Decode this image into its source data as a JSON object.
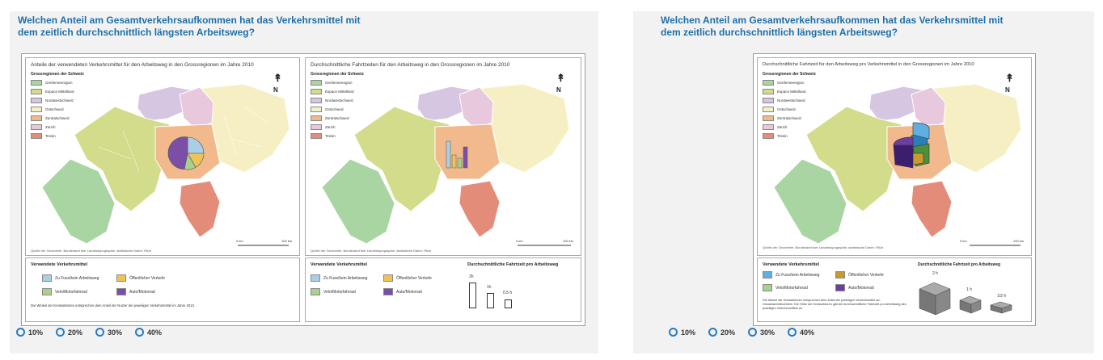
{
  "colors": {
    "Genferseeregion": "#a8d5a2",
    "Espace Mittelland": "#d2dc8a",
    "Nordwestschweiz": "#d6c6e2",
    "Ostschweiz": "#f7efc4",
    "Zentralschweiz": "#f1b98c",
    "Zürich": "#e8c8dc",
    "Tessin": "#e48c7a",
    "foot": "#a9cfe6",
    "oev": "#f0c35a",
    "velo": "#a8d08f",
    "auto": "#7b4fa8",
    "accent": "#1d6fa8"
  },
  "question": "Welchen Anteil am Gesamtverkehrsaufkommen hat das Verkehrsmittel mit dem zeitlich durchschnittlich längsten Arbeitsweg?",
  "left": {
    "map1_title": "Anteile der verwendeten Verkehrsmittel für den Arbeitsweg in den Grossregionen im Jahre 2010",
    "map2_title": "Durchschnittliche Fahrtzeiten für den Arbeitsweg in den Grossregionen im Jahre 2010",
    "legend_title": "Grossregionen der Schweiz",
    "regions": [
      "Genferseeregion",
      "Espace Mittelland",
      "Nordwestschweiz",
      "Ostschweiz",
      "Zentralschweiz",
      "Zürich",
      "Tessin"
    ],
    "source": "Quelle der Geometrie: Bundesamt fuer Landestopographie, statistische Daten: FillAr",
    "scale_0": "0 km",
    "scale_100": "100 km",
    "modes_title": "Verwendete Verkehrsmittel",
    "modes": [
      "Zu Fuss/kein Arbeitsweg",
      "Öffentlicher Verkehr",
      "Velo/Motorfahrrad",
      "Auto/Motorrad"
    ],
    "note": "Die Winkel der Kreissektoren entsprechen dem Anteil der Nutzer der jeweiligen Verkehrsmittel im Jahre 2010.",
    "time_title": "Durchschnittliche Fahrtzeit pro Arbeitsweg",
    "times": [
      "2h",
      "1h",
      "0.5 h"
    ]
  },
  "right": {
    "map_title": "Durchschnittliche Fahrtzeit für den Arbeitsweg pro Verkehrsmittel in den Grossregionen im Jahre 2010",
    "legend_title": "Grossregionen der Schweiz",
    "regions": [
      "Genferseeregion",
      "Espace Mittelland",
      "Nordwestschweiz",
      "Ostschweiz",
      "Zentralschweiz",
      "Zürich",
      "Tessin"
    ],
    "source": "Quelle der Geometrie: Bundesamt fuer Landestopographie, statistische Daten: FillAr",
    "scale_0": "0 km",
    "scale_100": "100 km",
    "modes_title": "Verwendete Verkehrsmittel",
    "modes": [
      "Zu Fuss/kein Arbeitsweg",
      "Öffentlicher Verkehr",
      "Velo/Motorfahrrad",
      "Auto/Motorrad"
    ],
    "note": "Die Winkel der Kreissektoren entsprechen dem Anteil der jeweiligen Verkehrsmittel am Gesamtarbeitsverkehr. Die Höhe der Kreissektoren gibt die durchschnittliche Fahrtzeit pro Arbeitsweg des jeweiligen Verkehrsmittels an.",
    "time_title": "Durchschnittliche Fahrtzeit pro Arbeitsweg",
    "times": [
      "2 h",
      "1 h",
      "1/2 h"
    ]
  },
  "options": [
    "10%",
    "20%",
    "30%",
    "40%"
  ]
}
